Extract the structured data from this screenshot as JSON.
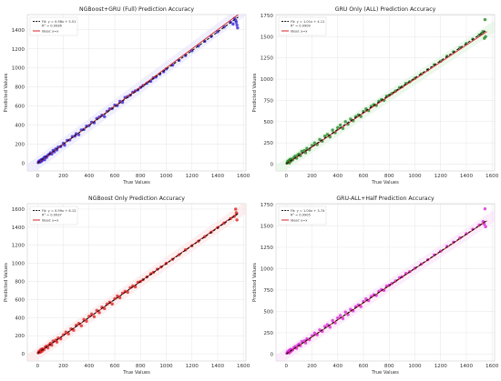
{
  "figure": {
    "background": "#ffffff"
  },
  "chart_data": [
    {
      "type": "scatter",
      "title": "NGBoost+GRU (Full) Prediction Accuracy",
      "xlabel": "True Values",
      "ylabel": "Predicted Values",
      "xlim": [
        -80,
        1620
      ],
      "ylim": [
        -80,
        1560
      ],
      "xticks": [
        0,
        200,
        400,
        600,
        800,
        1000,
        1200,
        1400,
        1600
      ],
      "yticks": [
        0,
        200,
        400,
        600,
        800,
        1000,
        1200,
        1400
      ],
      "grid": true,
      "legend_position": "top-left",
      "fit": {
        "label": "Fit: y = 0.98x + 5.51",
        "slope": 0.98,
        "intercept": 5.51,
        "r2_label": "R² = 0.9936"
      },
      "ideal": {
        "label": "Ideal: y=x"
      },
      "color": "#2a14d8",
      "band_color": "#e2e2fb",
      "points": [
        [
          5,
          8
        ],
        [
          10,
          22
        ],
        [
          15,
          12
        ],
        [
          20,
          30
        ],
        [
          25,
          18
        ],
        [
          30,
          40
        ],
        [
          35,
          28
        ],
        [
          40,
          45
        ],
        [
          50,
          60
        ],
        [
          55,
          38
        ],
        [
          60,
          70
        ],
        [
          70,
          62
        ],
        [
          80,
          85
        ],
        [
          90,
          95
        ],
        [
          100,
          110
        ],
        [
          110,
          98
        ],
        [
          120,
          135
        ],
        [
          130,
          120
        ],
        [
          140,
          150
        ],
        [
          150,
          140
        ],
        [
          160,
          170
        ],
        [
          180,
          175
        ],
        [
          200,
          210
        ],
        [
          210,
          190
        ],
        [
          230,
          240
        ],
        [
          250,
          245
        ],
        [
          270,
          280
        ],
        [
          290,
          285
        ],
        [
          300,
          310
        ],
        [
          320,
          300
        ],
        [
          340,
          350
        ],
        [
          360,
          355
        ],
        [
          380,
          390
        ],
        [
          400,
          395
        ],
        [
          420,
          430
        ],
        [
          440,
          425
        ],
        [
          460,
          470
        ],
        [
          480,
          485
        ],
        [
          500,
          505
        ],
        [
          520,
          490
        ],
        [
          540,
          545
        ],
        [
          560,
          570
        ],
        [
          580,
          575
        ],
        [
          600,
          610
        ],
        [
          620,
          605
        ],
        [
          640,
          650
        ],
        [
          660,
          640
        ],
        [
          680,
          690
        ],
        [
          700,
          700
        ],
        [
          720,
          715
        ],
        [
          740,
          745
        ],
        [
          760,
          760
        ],
        [
          780,
          770
        ],
        [
          800,
          795
        ],
        [
          820,
          815
        ],
        [
          850,
          840
        ],
        [
          880,
          860
        ],
        [
          900,
          895
        ],
        [
          920,
          905
        ],
        [
          950,
          935
        ],
        [
          980,
          960
        ],
        [
          1000,
          990
        ],
        [
          1050,
          1030
        ],
        [
          1100,
          1080
        ],
        [
          1150,
          1130
        ],
        [
          1200,
          1180
        ],
        [
          1250,
          1230
        ],
        [
          1300,
          1280
        ],
        [
          1350,
          1330
        ],
        [
          1400,
          1380
        ],
        [
          1450,
          1430
        ],
        [
          1500,
          1480
        ],
        [
          1530,
          1520
        ],
        [
          1545,
          1480
        ],
        [
          1550,
          1450
        ],
        [
          1555,
          1420
        ],
        [
          1520,
          1460
        ],
        [
          1540,
          1500
        ]
      ]
    },
    {
      "type": "scatter",
      "title": "GRU Only (ALL) Prediction Accuracy",
      "xlabel": "True Values",
      "ylabel": "Predicted Values",
      "xlim": [
        -80,
        1620
      ],
      "ylim": [
        -80,
        1760
      ],
      "xticks": [
        0,
        200,
        400,
        600,
        800,
        1000,
        1200,
        1400,
        1600
      ],
      "yticks": [
        0,
        250,
        500,
        750,
        1000,
        1250,
        1500,
        1750
      ],
      "grid": true,
      "legend_position": "top-left",
      "fit": {
        "label": "Fit: y = 1.01x + 4.11",
        "slope": 1.01,
        "intercept": 4.11,
        "r2_label": "R² = 0.9909"
      },
      "ideal": {
        "label": "Ideal: y=x"
      },
      "color": "#16821a",
      "band_color": "#dff2df",
      "points": [
        [
          5,
          12
        ],
        [
          10,
          30
        ],
        [
          15,
          20
        ],
        [
          20,
          45
        ],
        [
          25,
          15
        ],
        [
          30,
          55
        ],
        [
          35,
          35
        ],
        [
          40,
          60
        ],
        [
          50,
          50
        ],
        [
          60,
          80
        ],
        [
          70,
          95
        ],
        [
          80,
          70
        ],
        [
          90,
          110
        ],
        [
          100,
          120
        ],
        [
          110,
          100
        ],
        [
          120,
          150
        ],
        [
          140,
          160
        ],
        [
          150,
          135
        ],
        [
          160,
          185
        ],
        [
          180,
          170
        ],
        [
          200,
          220
        ],
        [
          220,
          250
        ],
        [
          240,
          230
        ],
        [
          260,
          290
        ],
        [
          280,
          270
        ],
        [
          300,
          330
        ],
        [
          320,
          350
        ],
        [
          340,
          320
        ],
        [
          360,
          400
        ],
        [
          380,
          370
        ],
        [
          400,
          430
        ],
        [
          420,
          460
        ],
        [
          440,
          420
        ],
        [
          460,
          500
        ],
        [
          480,
          470
        ],
        [
          500,
          530
        ],
        [
          520,
          510
        ],
        [
          540,
          560
        ],
        [
          560,
          580
        ],
        [
          580,
          560
        ],
        [
          600,
          620
        ],
        [
          620,
          650
        ],
        [
          640,
          630
        ],
        [
          660,
          680
        ],
        [
          680,
          700
        ],
        [
          700,
          690
        ],
        [
          720,
          740
        ],
        [
          740,
          760
        ],
        [
          760,
          750
        ],
        [
          780,
          800
        ],
        [
          800,
          810
        ],
        [
          820,
          830
        ],
        [
          850,
          860
        ],
        [
          880,
          900
        ],
        [
          900,
          910
        ],
        [
          930,
          950
        ],
        [
          960,
          970
        ],
        [
          1000,
          1010
        ],
        [
          1050,
          1060
        ],
        [
          1100,
          1110
        ],
        [
          1150,
          1170
        ],
        [
          1200,
          1210
        ],
        [
          1250,
          1270
        ],
        [
          1300,
          1320
        ],
        [
          1350,
          1370
        ],
        [
          1400,
          1420
        ],
        [
          1450,
          1470
        ],
        [
          1500,
          1520
        ],
        [
          1530,
          1560
        ],
        [
          1545,
          1700
        ],
        [
          1550,
          1500
        ],
        [
          1540,
          1480
        ],
        [
          1520,
          1540
        ]
      ]
    },
    {
      "type": "scatter",
      "title": "NGBoost Only Prediction Accuracy",
      "xlabel": "True Values",
      "ylabel": "Predicted Values",
      "xlim": [
        -80,
        1620
      ],
      "ylim": [
        -80,
        1660
      ],
      "xticks": [
        0,
        200,
        400,
        600,
        800,
        1000,
        1200,
        1400,
        1600
      ],
      "yticks": [
        0,
        200,
        400,
        600,
        800,
        1000,
        1200,
        1400,
        1600
      ],
      "grid": true,
      "legend_position": "top-left",
      "fit": {
        "label": "Fit: y = 0.99x + 6.12",
        "slope": 0.99,
        "intercept": 6.12,
        "r2_label": "R² = 0.9937"
      },
      "ideal": {
        "label": "Ideal: y=x"
      },
      "color": "#d81414",
      "band_color": "#fbe2e2",
      "points": [
        [
          5,
          10
        ],
        [
          10,
          25
        ],
        [
          15,
          15
        ],
        [
          20,
          40
        ],
        [
          25,
          20
        ],
        [
          30,
          50
        ],
        [
          35,
          30
        ],
        [
          40,
          55
        ],
        [
          50,
          45
        ],
        [
          60,
          75
        ],
        [
          70,
          85
        ],
        [
          80,
          65
        ],
        [
          90,
          100
        ],
        [
          100,
          115
        ],
        [
          110,
          95
        ],
        [
          120,
          140
        ],
        [
          140,
          150
        ],
        [
          150,
          130
        ],
        [
          160,
          175
        ],
        [
          180,
          165
        ],
        [
          200,
          210
        ],
        [
          220,
          240
        ],
        [
          240,
          220
        ],
        [
          260,
          275
        ],
        [
          280,
          260
        ],
        [
          300,
          315
        ],
        [
          320,
          335
        ],
        [
          340,
          310
        ],
        [
          360,
          380
        ],
        [
          380,
          360
        ],
        [
          400,
          415
        ],
        [
          420,
          440
        ],
        [
          440,
          410
        ],
        [
          460,
          480
        ],
        [
          480,
          455
        ],
        [
          500,
          515
        ],
        [
          520,
          500
        ],
        [
          540,
          550
        ],
        [
          560,
          570
        ],
        [
          580,
          550
        ],
        [
          600,
          610
        ],
        [
          620,
          640
        ],
        [
          640,
          620
        ],
        [
          660,
          670
        ],
        [
          680,
          690
        ],
        [
          700,
          680
        ],
        [
          720,
          730
        ],
        [
          740,
          750
        ],
        [
          760,
          740
        ],
        [
          780,
          790
        ],
        [
          800,
          800
        ],
        [
          820,
          820
        ],
        [
          850,
          850
        ],
        [
          880,
          885
        ],
        [
          900,
          900
        ],
        [
          930,
          935
        ],
        [
          960,
          960
        ],
        [
          1000,
          1000
        ],
        [
          1050,
          1045
        ],
        [
          1100,
          1095
        ],
        [
          1150,
          1150
        ],
        [
          1200,
          1195
        ],
        [
          1250,
          1245
        ],
        [
          1300,
          1295
        ],
        [
          1350,
          1345
        ],
        [
          1400,
          1395
        ],
        [
          1450,
          1445
        ],
        [
          1500,
          1495
        ],
        [
          1530,
          1520
        ],
        [
          1545,
          1560
        ],
        [
          1550,
          1480
        ],
        [
          1540,
          1600
        ]
      ]
    },
    {
      "type": "scatter",
      "title": "GRU-ALL+Half Prediction Accuracy",
      "xlabel": "True Values",
      "ylabel": "Predicted Values",
      "xlim": [
        -80,
        1620
      ],
      "ylim": [
        -80,
        1760
      ],
      "xticks": [
        0,
        200,
        400,
        600,
        800,
        1000,
        1200,
        1400,
        1600
      ],
      "yticks": [
        0,
        250,
        500,
        750,
        1000,
        1250,
        1500,
        1750
      ],
      "grid": true,
      "legend_position": "top-left",
      "fit": {
        "label": "Fit: y = 1.00x + 3.74",
        "slope": 1.0,
        "intercept": 3.74,
        "r2_label": "R² = 0.9905"
      },
      "ideal": {
        "label": "Ideal: y=x"
      },
      "color": "#d61ad6",
      "band_color": "#f8dff8",
      "points": [
        [
          5,
          12
        ],
        [
          10,
          28
        ],
        [
          15,
          18
        ],
        [
          20,
          42
        ],
        [
          25,
          16
        ],
        [
          30,
          52
        ],
        [
          35,
          32
        ],
        [
          40,
          58
        ],
        [
          50,
          48
        ],
        [
          60,
          78
        ],
        [
          70,
          90
        ],
        [
          80,
          68
        ],
        [
          90,
          106
        ],
        [
          100,
          118
        ],
        [
          110,
          98
        ],
        [
          120,
          146
        ],
        [
          140,
          156
        ],
        [
          150,
          132
        ],
        [
          160,
          180
        ],
        [
          180,
          168
        ],
        [
          200,
          216
        ],
        [
          220,
          246
        ],
        [
          240,
          226
        ],
        [
          260,
          284
        ],
        [
          280,
          266
        ],
        [
          300,
          324
        ],
        [
          320,
          344
        ],
        [
          340,
          316
        ],
        [
          360,
          392
        ],
        [
          380,
          366
        ],
        [
          400,
          424
        ],
        [
          420,
          452
        ],
        [
          440,
          416
        ],
        [
          460,
          492
        ],
        [
          480,
          462
        ],
        [
          500,
          524
        ],
        [
          520,
          506
        ],
        [
          540,
          556
        ],
        [
          560,
          576
        ],
        [
          580,
          556
        ],
        [
          600,
          616
        ],
        [
          620,
          646
        ],
        [
          640,
          626
        ],
        [
          660,
          676
        ],
        [
          680,
          696
        ],
        [
          700,
          686
        ],
        [
          720,
          736
        ],
        [
          740,
          756
        ],
        [
          760,
          746
        ],
        [
          780,
          796
        ],
        [
          800,
          806
        ],
        [
          820,
          826
        ],
        [
          850,
          856
        ],
        [
          880,
          894
        ],
        [
          900,
          906
        ],
        [
          930,
          944
        ],
        [
          960,
          966
        ],
        [
          1000,
          1006
        ],
        [
          1050,
          1054
        ],
        [
          1100,
          1104
        ],
        [
          1150,
          1160
        ],
        [
          1200,
          1204
        ],
        [
          1250,
          1262
        ],
        [
          1300,
          1310
        ],
        [
          1350,
          1360
        ],
        [
          1400,
          1410
        ],
        [
          1450,
          1462
        ],
        [
          1500,
          1510
        ],
        [
          1530,
          1550
        ],
        [
          1545,
          1700
        ],
        [
          1550,
          1490
        ],
        [
          1540,
          1520
        ]
      ]
    }
  ]
}
